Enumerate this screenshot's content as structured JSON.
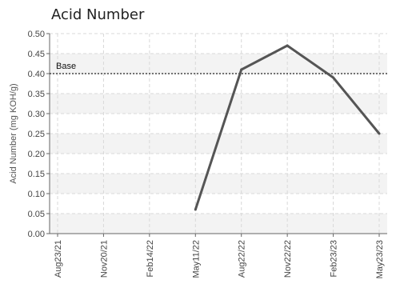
{
  "chart_data": {
    "type": "line",
    "title": "Acid Number",
    "ylabel": "Acid Number (mg KOH/g)",
    "xlabel": "",
    "ylim": [
      0,
      0.5
    ],
    "yticks": [
      "0.00",
      "0.05",
      "0.10",
      "0.15",
      "0.20",
      "0.25",
      "0.30",
      "0.35",
      "0.40",
      "0.45",
      "0.50"
    ],
    "categories": [
      "Aug23/21",
      "Nov20/21",
      "Feb14/22",
      "May11/22",
      "Aug22/22",
      "Nov22/22",
      "Feb23/23",
      "May23/23"
    ],
    "series": [
      {
        "values": [
          null,
          null,
          null,
          0.06,
          0.41,
          0.47,
          0.39,
          0.25
        ],
        "color": "#555555"
      }
    ],
    "baseline": {
      "label": "Base",
      "value": 0.4
    },
    "grid": true,
    "band_colors": [
      "#f3f3f3",
      "#ffffff"
    ]
  }
}
